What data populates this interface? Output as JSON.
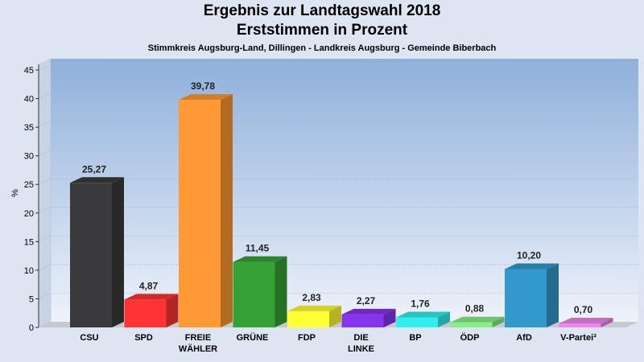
{
  "title": "Ergebnis zur Landtagswahl 2018",
  "subtitle": "Erststimmen in Prozent",
  "caption": "Stimmkreis Augsburg-Land, Dillingen - Landkreis Augsburg - Gemeinde Biberbach",
  "chart_data": {
    "type": "bar",
    "ylabel": "%",
    "ylim": [
      0,
      45
    ],
    "yticks": [
      0,
      5,
      10,
      15,
      20,
      25,
      30,
      35,
      40,
      45
    ],
    "grid": true,
    "categories": [
      "CSU",
      "SPD",
      "FREIE WÄHLER",
      "GRÜNE",
      "FDP",
      "DIE LINKE",
      "BP",
      "ÖDP",
      "AfD",
      "V-Partei³"
    ],
    "category_lines": [
      [
        "CSU"
      ],
      [
        "SPD"
      ],
      [
        "FREIE",
        "WÄHLER"
      ],
      [
        "GRÜNE"
      ],
      [
        "FDP"
      ],
      [
        "DIE",
        "LINKE"
      ],
      [
        "BP"
      ],
      [
        "ÖDP"
      ],
      [
        "AfD"
      ],
      [
        "V-Partei³"
      ]
    ],
    "values": [
      25.27,
      4.87,
      39.78,
      11.45,
      2.83,
      2.27,
      1.76,
      0.88,
      10.2,
      0.7
    ],
    "value_labels": [
      "25,27",
      "4,87",
      "39,78",
      "11,45",
      "2,83",
      "2,27",
      "1,76",
      "0,88",
      "10,20",
      "0,70"
    ],
    "colors": [
      "#3a3a3c",
      "#ff3333",
      "#ff9933",
      "#36a136",
      "#ffff33",
      "#8833ee",
      "#33eeee",
      "#88ee88",
      "#3399cc",
      "#ee88ee"
    ]
  }
}
